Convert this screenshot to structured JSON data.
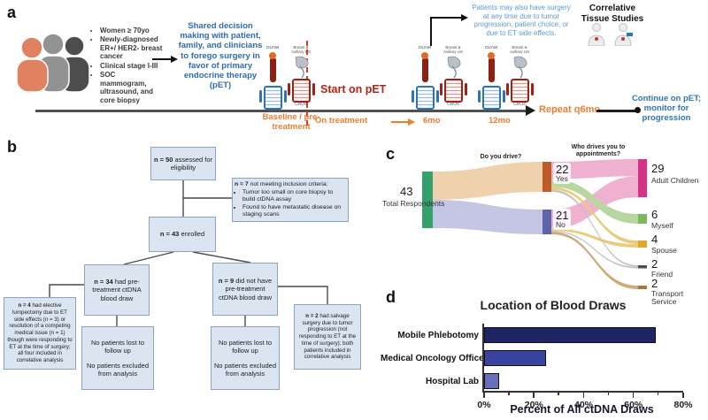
{
  "panels": {
    "a": {
      "label": "a",
      "criteria": [
        "Women ≥ 70yo",
        "Newly-diagnosed ER+/ HER2- breast cancer",
        "Clinical stage I-III",
        "SOC mammogram, ultrasound, and core biopsy"
      ],
      "shared_decision": "Shared decision making with patient, family, and clinicians to forego surgery in favor of primary endocrine therapy (pET)",
      "surgery_note": "Patients may also have surgery at any time due to tumor progression, patient choice, or due to ET side effects.",
      "correlative_title": "Correlative Tissue Studies",
      "icons": {
        "ctdna": "ctDNA",
        "us": "Breast & Axillary US",
        "pros": "PROs",
        "cros": "CROs"
      },
      "timeline": {
        "baseline": "Baseline / pre-treatment",
        "start": "Start on pET",
        "on_treatment": "On treatment",
        "m6": "6mo",
        "m12": "12mo",
        "repeat": "Repeat q6mo",
        "continue": "Continue on pET; monitor for progression"
      }
    },
    "b": {
      "label": "b",
      "box_eligibility": {
        "n": "n = 50",
        "text": "assessed for eligibility"
      },
      "box_exclusion": {
        "n": "n = 7",
        "text": "not meeting inclusion criteria:",
        "bullets": [
          "Tumor too small on core biopsy to build ctDNA assay",
          "Found to have metastatic disease on staging scans"
        ]
      },
      "box_enrolled": {
        "n": "n = 43",
        "text": "enrolled"
      },
      "box_draw": {
        "n": "n = 34",
        "text": "had pre-treatment ctDNA blood draw"
      },
      "box_nodraw": {
        "n": "n = 9",
        "text": "did not have pre-treatment ctDNA blood draw"
      },
      "followup_line1": "No patients lost to follow up",
      "followup_line2": "No patients excluded from analysis",
      "box_lumpectomy": {
        "n": "n = 4",
        "text": "had elective lumpectomy due to ET side effects (n = 3) or resolution of a competing medical issue (n = 1) though were responding to ET at the time of surgery; all four included in correlative analysis"
      },
      "box_salvage": {
        "n": "n = 2",
        "text": "had salvage surgery due to tumor progression (not responding to ET at the time of surgery); both patients included in correlative analysis"
      }
    },
    "c": {
      "label": "c"
    },
    "d": {
      "label": "d"
    }
  },
  "chart_data": [
    {
      "type": "sankey",
      "questions": [
        "Do you drive?",
        "Who drives you to appointments?"
      ],
      "nodes": [
        {
          "name": "Total Respondents",
          "value": 43,
          "color": "#35a06b"
        },
        {
          "name": "Yes",
          "value": 22,
          "color": "#c05a28"
        },
        {
          "name": "No",
          "value": 21,
          "color": "#5f63aa"
        },
        {
          "name": "Adult Children",
          "value": 29,
          "color": "#d63384"
        },
        {
          "name": "Myself",
          "value": 6,
          "color": "#7db85c"
        },
        {
          "name": "Spouse",
          "value": 4,
          "color": "#e0a832"
        },
        {
          "name": "Friend",
          "value": 2,
          "color": "#4d4d4d"
        },
        {
          "name": "Transport Service",
          "value": 2,
          "color": "#a5773d"
        }
      ],
      "links": [
        {
          "source": "Total Respondents",
          "target": "Yes",
          "value": 22
        },
        {
          "source": "Total Respondents",
          "target": "No",
          "value": 21
        },
        {
          "source": "Yes",
          "target": "Adult Children",
          "value": 13
        },
        {
          "source": "Yes",
          "target": "Myself",
          "value": 6
        },
        {
          "source": "Yes",
          "target": "Spouse",
          "value": 2
        },
        {
          "source": "Yes",
          "target": "Friend",
          "value": 1
        },
        {
          "source": "No",
          "target": "Adult Children",
          "value": 16
        },
        {
          "source": "No",
          "target": "Spouse",
          "value": 2
        },
        {
          "source": "No",
          "target": "Friend",
          "value": 1
        },
        {
          "source": "No",
          "target": "Transport Service",
          "value": 2
        }
      ]
    },
    {
      "type": "bar",
      "orientation": "horizontal",
      "title": "Location of Blood Draws",
      "categories": [
        "Mobile Phlebotomy",
        "Medical Oncology Office",
        "Hospital Lab"
      ],
      "values": [
        69,
        25,
        6
      ],
      "xlabel": "Percent of All ctDNA Draws",
      "xlim": [
        0,
        80
      ],
      "xticks": [
        "0%",
        "20%",
        "40%",
        "60%",
        "80%"
      ],
      "bar_colors": [
        "#1e2464",
        "#3a43a0",
        "#6a6fbd"
      ]
    }
  ]
}
